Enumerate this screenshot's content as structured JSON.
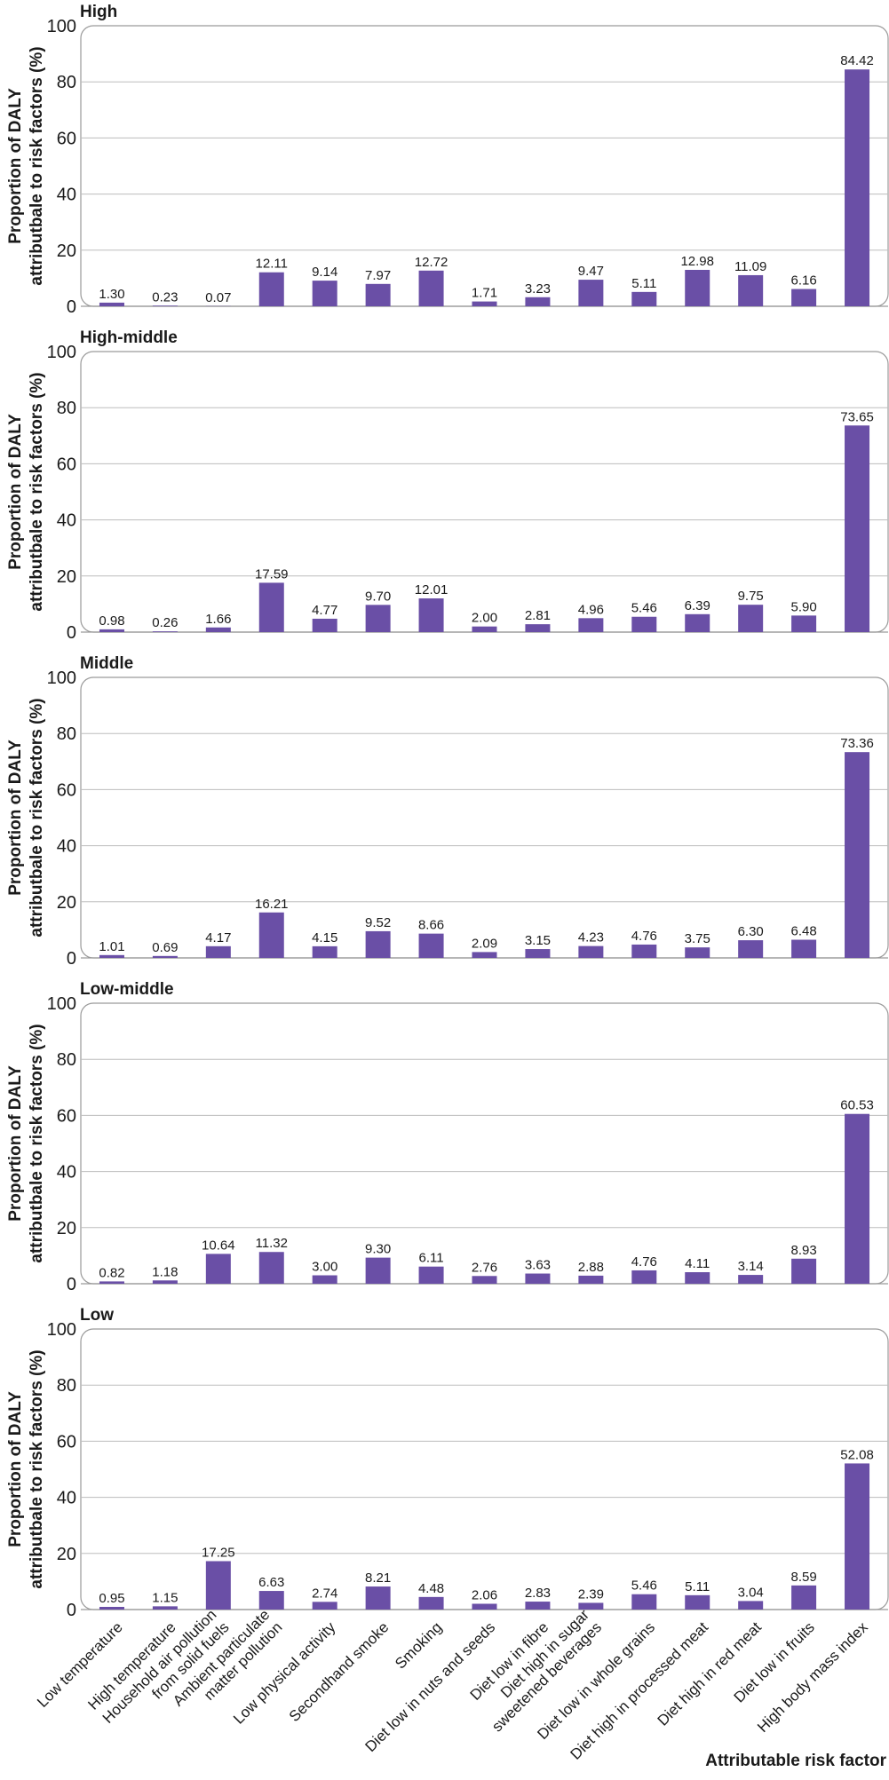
{
  "colors": {
    "bar": "#6a4fa6",
    "grid": "#bdbdbd",
    "frame": "#9a9a9a",
    "text": "#1a1a1a"
  },
  "chart_data": {
    "type": "bar",
    "ylabel_line1": "Proportion of DALY",
    "ylabel_line2": "attributbale to risk factors (%)",
    "xlabel": "Attributable risk factor",
    "ylim": [
      0,
      100
    ],
    "yticks": [
      0,
      20,
      40,
      60,
      80,
      100
    ],
    "grid": true,
    "categories": [
      [
        "Low temperature"
      ],
      [
        "High temperature"
      ],
      [
        "Household air pollution",
        "from solid fuels"
      ],
      [
        "Ambient particulate",
        "matter pollution"
      ],
      [
        "Low physical activity"
      ],
      [
        "Secondhand smoke"
      ],
      [
        "Smoking"
      ],
      [
        "Diet low in nuts and seeds"
      ],
      [
        "Diet low in fibre"
      ],
      [
        "Diet high in sugar",
        "sweetened beverages"
      ],
      [
        "Diet low in whole grains"
      ],
      [
        "Diet high in processed meat"
      ],
      [
        "Diet high in red meat"
      ],
      [
        "Diet low in fruits"
      ],
      [
        "High body mass index"
      ]
    ],
    "panels": [
      {
        "name": "High",
        "values": [
          1.3,
          0.23,
          0.07,
          12.11,
          9.14,
          7.97,
          12.72,
          1.71,
          3.23,
          9.47,
          5.11,
          12.98,
          11.09,
          6.16,
          84.42
        ],
        "labels": [
          "1.30",
          "0.23",
          "0.07",
          "12.11",
          "9.14",
          "7.97",
          "12.72",
          "1.71",
          "3.23",
          "9.47",
          "5.11",
          "12.98",
          "11.09",
          "6.16",
          "84.42"
        ]
      },
      {
        "name": "High-middle",
        "values": [
          0.98,
          0.26,
          1.66,
          17.59,
          4.77,
          9.7,
          12.01,
          2.0,
          2.81,
          4.96,
          5.46,
          6.39,
          9.75,
          5.9,
          73.65
        ],
        "labels": [
          "0.98",
          "0.26",
          "1.66",
          "17.59",
          "4.77",
          "9.70",
          "12.01",
          "2.00",
          "2.81",
          "4.96",
          "5.46",
          "6.39",
          "9.75",
          "5.90",
          "73.65"
        ]
      },
      {
        "name": "Middle",
        "values": [
          1.01,
          0.69,
          4.17,
          16.21,
          4.15,
          9.52,
          8.66,
          2.09,
          3.15,
          4.23,
          4.76,
          3.75,
          6.3,
          6.48,
          73.36
        ],
        "labels": [
          "1.01",
          "0.69",
          "4.17",
          "16.21",
          "4.15",
          "9.52",
          "8.66",
          "2.09",
          "3.15",
          "4.23",
          "4.76",
          "3.75",
          "6.30",
          "6.48",
          "73.36"
        ]
      },
      {
        "name": "Low-middle",
        "values": [
          0.82,
          1.18,
          10.64,
          11.32,
          3.0,
          9.3,
          6.11,
          2.76,
          3.63,
          2.88,
          4.76,
          4.11,
          3.14,
          8.93,
          60.53
        ],
        "labels": [
          "0.82",
          "1.18",
          "10.64",
          "11.32",
          "3.00",
          "9.30",
          "6.11",
          "2.76",
          "3.63",
          "2.88",
          "4.76",
          "4.11",
          "3.14",
          "8.93",
          "60.53"
        ]
      },
      {
        "name": "Low",
        "values": [
          0.95,
          1.15,
          17.25,
          6.63,
          2.74,
          8.21,
          4.48,
          2.06,
          2.83,
          2.39,
          5.46,
          5.11,
          3.04,
          8.59,
          52.08
        ],
        "labels": [
          "0.95",
          "1.15",
          "17.25",
          "6.63",
          "2.74",
          "8.21",
          "4.48",
          "2.06",
          "2.83",
          "2.39",
          "5.46",
          "5.11",
          "3.04",
          "8.59",
          "52.08"
        ]
      }
    ]
  }
}
